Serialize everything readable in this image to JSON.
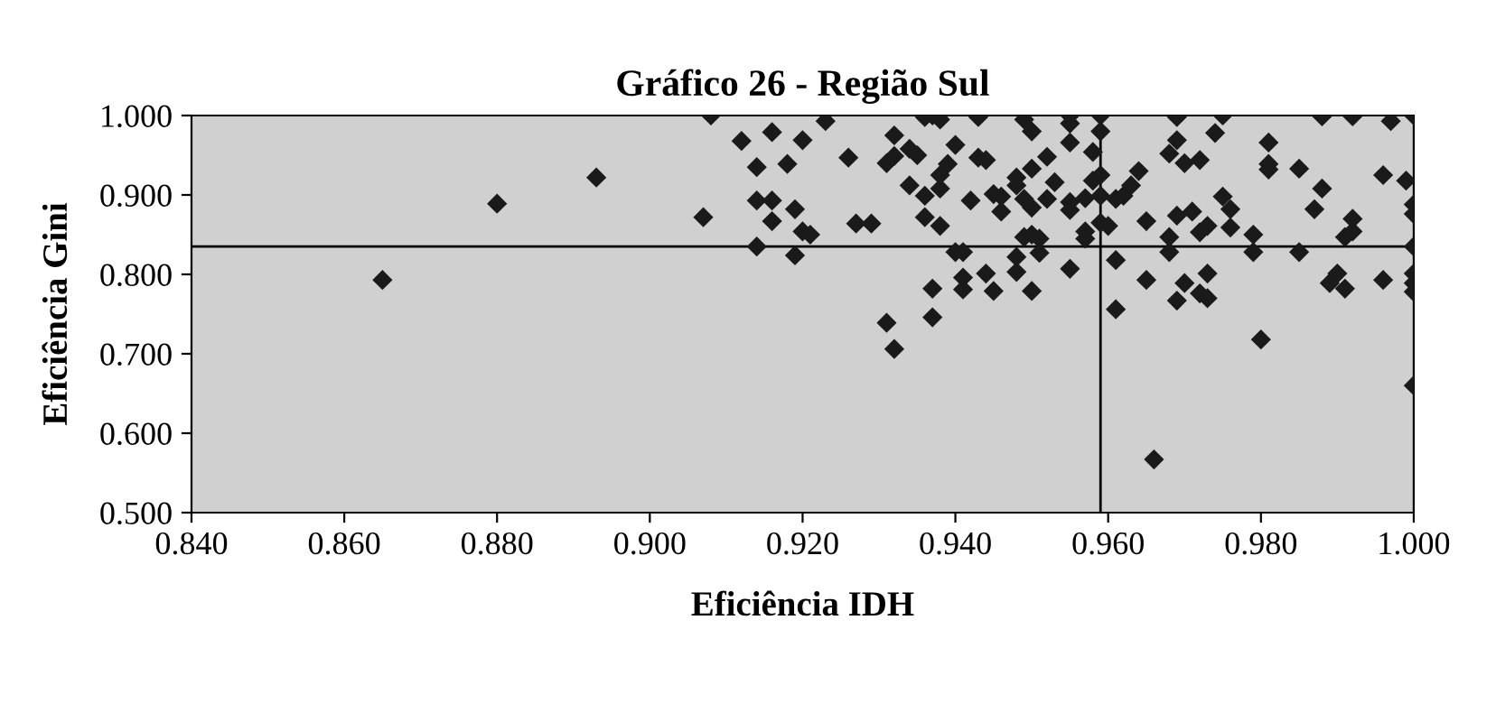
{
  "chart_data": {
    "type": "scatter",
    "title": "Gráfico 26 - Região Sul",
    "xlabel": "Eficiência IDH",
    "ylabel": "Eficiência Gini",
    "xlim": [
      0.84,
      1.0
    ],
    "xticks": [
      {
        "value": 0.84,
        "label": "0.840"
      },
      {
        "value": 0.86,
        "label": "0.860"
      },
      {
        "value": 0.88,
        "label": "0.880"
      },
      {
        "value": 0.9,
        "label": "0.900"
      },
      {
        "value": 0.92,
        "label": "0.920"
      },
      {
        "value": 0.94,
        "label": "0.940"
      },
      {
        "value": 0.96,
        "label": "0.960"
      },
      {
        "value": 0.98,
        "label": "0.980"
      },
      {
        "value": 1.0,
        "label": "1.000"
      }
    ],
    "ylim": [
      0.5,
      1.0
    ],
    "yticks": [
      {
        "value": 0.5,
        "label": "0.500"
      },
      {
        "value": 0.6,
        "label": "0.600"
      },
      {
        "value": 0.7,
        "label": "0.700"
      },
      {
        "value": 0.8,
        "label": "0.800"
      },
      {
        "value": 0.9,
        "label": "0.900"
      },
      {
        "value": 1.0,
        "label": "1.000"
      }
    ],
    "grid": false,
    "legend": false,
    "marker": "diamond",
    "ref_lines": [
      {
        "axis": "y",
        "value": 0.835,
        "color": "#000000"
      },
      {
        "axis": "x",
        "value": 0.959,
        "color": "#000000"
      }
    ],
    "series": [
      {
        "color": "#1a1a1a",
        "x": [
          0.865,
          0.88,
          0.893,
          0.907,
          0.908,
          0.912,
          0.914,
          0.914,
          0.914,
          0.916,
          0.916,
          0.916,
          0.918,
          0.919,
          0.919,
          0.923,
          0.92,
          0.92,
          0.921,
          0.926,
          0.927,
          0.929,
          0.931,
          0.932,
          0.932,
          0.934,
          0.935,
          0.934,
          0.936,
          0.936,
          0.938,
          0.938,
          0.938,
          0.939,
          0.94,
          0.936,
          0.937,
          0.938,
          0.943,
          0.942,
          0.943,
          0.944,
          0.94,
          0.941,
          0.941,
          0.941,
          0.944,
          0.945,
          0.937,
          0.937,
          0.931,
          0.932,
          0.945,
          0.946,
          0.946,
          0.948,
          0.948,
          0.949,
          0.95,
          0.95,
          0.949,
          0.95,
          0.952,
          0.952,
          0.953,
          0.949,
          0.95,
          0.951,
          0.951,
          0.948,
          0.948,
          0.95,
          0.955,
          0.955,
          0.955,
          0.955,
          0.955,
          0.955,
          0.957,
          0.957,
          0.957,
          0.958,
          0.958,
          0.959,
          0.959,
          0.959,
          0.959,
          0.959,
          0.96,
          0.961,
          0.961,
          0.961,
          0.962,
          0.963,
          0.964,
          0.965,
          0.965,
          0.966,
          0.968,
          0.969,
          0.969,
          0.97,
          0.972,
          0.968,
          0.968,
          0.969,
          0.971,
          0.972,
          0.973,
          0.97,
          0.969,
          0.972,
          0.973,
          0.973,
          0.974,
          0.975,
          0.975,
          0.976,
          0.976,
          0.979,
          0.979,
          0.98,
          0.981,
          0.981,
          0.981,
          0.985,
          0.985,
          0.987,
          0.988,
          0.988,
          0.992,
          0.989,
          0.99,
          0.991,
          0.991,
          0.992,
          0.992,
          0.996,
          0.996,
          0.997,
          0.999,
          1.0,
          1.0,
          1.0,
          1.0,
          1.0,
          1.0,
          1.0,
          1.0
        ],
        "values": [
          0.793,
          0.889,
          0.922,
          0.872,
          1.0,
          0.968,
          0.935,
          0.893,
          0.835,
          0.979,
          0.893,
          0.867,
          0.939,
          0.882,
          0.824,
          0.993,
          0.969,
          0.854,
          0.85,
          0.947,
          0.864,
          0.864,
          0.94,
          0.949,
          0.975,
          0.958,
          0.95,
          0.912,
          0.899,
          0.872,
          0.861,
          0.908,
          0.925,
          0.939,
          0.963,
          0.998,
          1.0,
          0.995,
          0.998,
          0.893,
          0.947,
          0.944,
          0.828,
          0.828,
          0.796,
          0.781,
          0.801,
          0.779,
          0.782,
          0.746,
          0.739,
          0.706,
          0.901,
          0.898,
          0.879,
          0.922,
          0.912,
          0.895,
          0.884,
          0.933,
          0.995,
          0.98,
          0.948,
          0.895,
          0.916,
          0.847,
          0.85,
          0.845,
          0.827,
          0.822,
          0.803,
          0.779,
          1.0,
          0.99,
          0.966,
          0.891,
          0.881,
          0.807,
          0.896,
          0.854,
          0.845,
          0.954,
          0.918,
          1.0,
          0.98,
          0.899,
          0.865,
          0.925,
          0.861,
          0.818,
          0.756,
          0.895,
          0.899,
          0.912,
          0.93,
          0.867,
          0.793,
          0.567,
          0.952,
          0.969,
          0.998,
          0.94,
          0.944,
          0.847,
          0.828,
          0.874,
          0.879,
          0.853,
          0.861,
          0.789,
          0.767,
          0.776,
          0.77,
          0.801,
          0.978,
          1.0,
          0.898,
          0.882,
          0.859,
          0.85,
          0.828,
          0.718,
          0.966,
          0.939,
          0.932,
          0.933,
          0.828,
          0.882,
          0.908,
          0.999,
          0.999,
          0.789,
          0.801,
          0.782,
          0.847,
          0.854,
          0.87,
          0.925,
          0.793,
          0.993,
          0.918,
          1.0,
          0.888,
          0.876,
          0.835,
          0.801,
          0.789,
          0.778,
          0.66
        ]
      }
    ]
  }
}
